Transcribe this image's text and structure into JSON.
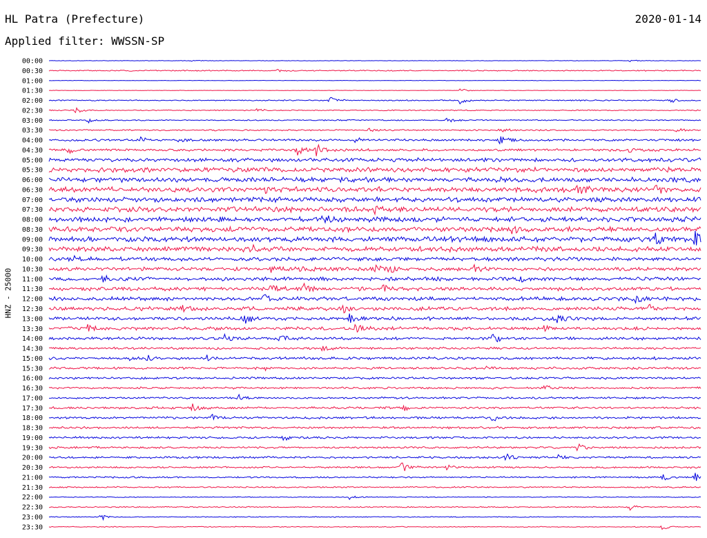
{
  "header": {
    "station": "HL Patra (Prefecture)",
    "date": "2020-01-14",
    "filter": "Applied filter: WWSSN-SP",
    "channel": "HNZ - 25000"
  },
  "colors": {
    "odd_trace": "#0000dd",
    "even_trace": "#ee1144",
    "text": "#000000",
    "background": "#ffffff"
  },
  "chart_data": {
    "type": "line",
    "description_source": "helicorder / seismogram drum plot, 48 half-hour rows",
    "ylabel": "HNZ - 25000",
    "rows": [
      {
        "label": "00:00",
        "color": "blue",
        "noise": 0.3
      },
      {
        "label": "00:30",
        "color": "red",
        "noise": 0.8
      },
      {
        "label": "01:00",
        "color": "blue",
        "noise": 0.3
      },
      {
        "label": "01:30",
        "color": "red",
        "noise": 0.3
      },
      {
        "label": "02:00",
        "color": "blue",
        "noise": 0.8
      },
      {
        "label": "02:30",
        "color": "red",
        "noise": 0.7
      },
      {
        "label": "03:00",
        "color": "blue",
        "noise": 0.8
      },
      {
        "label": "03:30",
        "color": "red",
        "noise": 1.0
      },
      {
        "label": "04:00",
        "color": "blue",
        "noise": 1.6
      },
      {
        "label": "04:30",
        "color": "red",
        "noise": 1.7
      },
      {
        "label": "05:00",
        "color": "blue",
        "noise": 2.6
      },
      {
        "label": "05:30",
        "color": "red",
        "noise": 3.2
      },
      {
        "label": "06:00",
        "color": "blue",
        "noise": 3.4
      },
      {
        "label": "06:30",
        "color": "red",
        "noise": 3.6
      },
      {
        "label": "07:00",
        "color": "blue",
        "noise": 3.4
      },
      {
        "label": "07:30",
        "color": "red",
        "noise": 3.6
      },
      {
        "label": "08:00",
        "color": "blue",
        "noise": 3.4
      },
      {
        "label": "08:30",
        "color": "red",
        "noise": 3.6
      },
      {
        "label": "09:00",
        "color": "blue",
        "noise": 3.6
      },
      {
        "label": "09:30",
        "color": "red",
        "noise": 3.4
      },
      {
        "label": "10:00",
        "color": "blue",
        "noise": 2.6
      },
      {
        "label": "10:30",
        "color": "red",
        "noise": 2.4
      },
      {
        "label": "11:00",
        "color": "blue",
        "noise": 2.6
      },
      {
        "label": "11:30",
        "color": "red",
        "noise": 2.6
      },
      {
        "label": "12:00",
        "color": "blue",
        "noise": 2.6
      },
      {
        "label": "12:30",
        "color": "red",
        "noise": 2.6
      },
      {
        "label": "13:00",
        "color": "blue",
        "noise": 2.4
      },
      {
        "label": "13:30",
        "color": "red",
        "noise": 2.2
      },
      {
        "label": "14:00",
        "color": "blue",
        "noise": 1.9
      },
      {
        "label": "14:30",
        "color": "red",
        "noise": 1.6
      },
      {
        "label": "15:00",
        "color": "blue",
        "noise": 1.9
      },
      {
        "label": "15:30",
        "color": "red",
        "noise": 1.6
      },
      {
        "label": "16:00",
        "color": "blue",
        "noise": 1.5
      },
      {
        "label": "16:30",
        "color": "red",
        "noise": 1.4
      },
      {
        "label": "17:00",
        "color": "blue",
        "noise": 1.3
      },
      {
        "label": "17:30",
        "color": "red",
        "noise": 1.5
      },
      {
        "label": "18:00",
        "color": "blue",
        "noise": 1.6
      },
      {
        "label": "18:30",
        "color": "red",
        "noise": 1.5
      },
      {
        "label": "19:00",
        "color": "blue",
        "noise": 1.4
      },
      {
        "label": "19:30",
        "color": "red",
        "noise": 1.4
      },
      {
        "label": "20:00",
        "color": "blue",
        "noise": 1.4
      },
      {
        "label": "20:30",
        "color": "red",
        "noise": 1.3
      },
      {
        "label": "21:00",
        "color": "blue",
        "noise": 1.1
      },
      {
        "label": "21:30",
        "color": "red",
        "noise": 1.0
      },
      {
        "label": "22:00",
        "color": "blue",
        "noise": 0.6
      },
      {
        "label": "22:30",
        "color": "red",
        "noise": 0.8
      },
      {
        "label": "23:00",
        "color": "blue",
        "noise": 0.6
      },
      {
        "label": "23:30",
        "color": "red",
        "noise": 0.6
      }
    ],
    "events": [
      {
        "row": "00:00",
        "x": 0.22,
        "amp": 1.6
      },
      {
        "row": "00:00",
        "x": 0.89,
        "amp": 1.4
      },
      {
        "row": "00:30",
        "x": 0.35,
        "amp": 1.5
      },
      {
        "row": "01:30",
        "x": 0.63,
        "amp": 3.0
      },
      {
        "row": "02:00",
        "x": 0.43,
        "amp": 5.0
      },
      {
        "row": "02:00",
        "x": 0.63,
        "amp": 6.0
      },
      {
        "row": "02:00",
        "x": 0.95,
        "amp": 5.0
      },
      {
        "row": "02:30",
        "x": 0.04,
        "amp": 5.0
      },
      {
        "row": "02:30",
        "x": 0.32,
        "amp": 3.5
      },
      {
        "row": "03:00",
        "x": 0.06,
        "amp": 4.5
      },
      {
        "row": "03:00",
        "x": 0.61,
        "amp": 5.0
      },
      {
        "row": "03:30",
        "x": 0.49,
        "amp": 3.0
      },
      {
        "row": "03:30",
        "x": 0.69,
        "amp": 5.0
      },
      {
        "row": "03:30",
        "x": 0.96,
        "amp": 3.5
      },
      {
        "row": "04:00",
        "x": 0.14,
        "amp": 5.0
      },
      {
        "row": "04:00",
        "x": 0.2,
        "amp": 7.0
      },
      {
        "row": "04:00",
        "x": 0.47,
        "amp": 4.0
      },
      {
        "row": "04:00",
        "x": 0.69,
        "amp": 7.0
      },
      {
        "row": "04:30",
        "x": 0.03,
        "amp": 5.0
      },
      {
        "row": "04:30",
        "x": 0.38,
        "amp": 8.0
      },
      {
        "row": "04:30",
        "x": 0.41,
        "amp": 9.0
      },
      {
        "row": "04:30",
        "x": 0.89,
        "amp": 4.0
      },
      {
        "row": "06:30",
        "x": 0.33,
        "amp": 6.0
      },
      {
        "row": "06:30",
        "x": 0.81,
        "amp": 9.0
      },
      {
        "row": "06:30",
        "x": 0.93,
        "amp": 6.0
      },
      {
        "row": "07:30",
        "x": 0.5,
        "amp": 6.0
      },
      {
        "row": "08:00",
        "x": 0.42,
        "amp": 6.0
      },
      {
        "row": "08:30",
        "x": 0.71,
        "amp": 6.0
      },
      {
        "row": "09:00",
        "x": 0.93,
        "amp": 7.0
      },
      {
        "row": "09:00",
        "x": 0.99,
        "amp": 9.0
      },
      {
        "row": "09:30",
        "x": 0.31,
        "amp": 6.0
      },
      {
        "row": "10:00",
        "x": 0.04,
        "amp": 5.0
      },
      {
        "row": "10:30",
        "x": 0.34,
        "amp": 7.0
      },
      {
        "row": "10:30",
        "x": 0.38,
        "amp": 9.0
      },
      {
        "row": "10:30",
        "x": 0.5,
        "amp": 6.0
      },
      {
        "row": "10:30",
        "x": 0.52,
        "amp": 7.0
      },
      {
        "row": "10:30",
        "x": 0.65,
        "amp": 6.0
      },
      {
        "row": "11:00",
        "x": 0.08,
        "amp": 6.0
      },
      {
        "row": "11:00",
        "x": 0.72,
        "amp": 6.0
      },
      {
        "row": "11:30",
        "x": 0.34,
        "amp": 6.0
      },
      {
        "row": "11:30",
        "x": 0.39,
        "amp": 7.0
      },
      {
        "row": "11:30",
        "x": 0.51,
        "amp": 6.0
      },
      {
        "row": "12:00",
        "x": 0.33,
        "amp": 6.0
      },
      {
        "row": "12:00",
        "x": 0.9,
        "amp": 7.0
      },
      {
        "row": "12:30",
        "x": 0.2,
        "amp": 7.0
      },
      {
        "row": "12:30",
        "x": 0.45,
        "amp": 7.0
      },
      {
        "row": "12:30",
        "x": 0.92,
        "amp": 6.0
      },
      {
        "row": "13:00",
        "x": 0.3,
        "amp": 7.0
      },
      {
        "row": "13:00",
        "x": 0.46,
        "amp": 8.0
      },
      {
        "row": "13:00",
        "x": 0.78,
        "amp": 9.0
      },
      {
        "row": "13:30",
        "x": 0.06,
        "amp": 6.0
      },
      {
        "row": "13:30",
        "x": 0.47,
        "amp": 7.0
      },
      {
        "row": "13:30",
        "x": 0.76,
        "amp": 6.0
      },
      {
        "row": "14:00",
        "x": 0.27,
        "amp": 6.0
      },
      {
        "row": "14:00",
        "x": 0.35,
        "amp": 9.0
      },
      {
        "row": "14:00",
        "x": 0.68,
        "amp": 7.0
      },
      {
        "row": "14:30",
        "x": 0.42,
        "amp": 5.0
      },
      {
        "row": "15:00",
        "x": 0.12,
        "amp": 5.0
      },
      {
        "row": "15:00",
        "x": 0.15,
        "amp": 4.0
      },
      {
        "row": "15:00",
        "x": 0.24,
        "amp": 5.0
      },
      {
        "row": "15:30",
        "x": 0.33,
        "amp": 4.0
      },
      {
        "row": "15:30",
        "x": 0.67,
        "amp": 4.0
      },
      {
        "row": "16:30",
        "x": 0.76,
        "amp": 4.0
      },
      {
        "row": "17:00",
        "x": 0.29,
        "amp": 5.0
      },
      {
        "row": "17:30",
        "x": 0.22,
        "amp": 6.0
      },
      {
        "row": "17:30",
        "x": 0.54,
        "amp": 5.0
      },
      {
        "row": "18:00",
        "x": 0.25,
        "amp": 4.0
      },
      {
        "row": "18:00",
        "x": 0.68,
        "amp": 4.0
      },
      {
        "row": "19:00",
        "x": 0.36,
        "amp": 5.0
      },
      {
        "row": "19:30",
        "x": 0.81,
        "amp": 5.0
      },
      {
        "row": "20:00",
        "x": 0.7,
        "amp": 5.0
      },
      {
        "row": "20:00",
        "x": 0.78,
        "amp": 4.0
      },
      {
        "row": "20:30",
        "x": 0.54,
        "amp": 8.0
      },
      {
        "row": "20:30",
        "x": 0.61,
        "amp": 4.0
      },
      {
        "row": "21:00",
        "x": 0.94,
        "amp": 5.0
      },
      {
        "row": "21:00",
        "x": 0.99,
        "amp": 6.0
      },
      {
        "row": "22:00",
        "x": 0.46,
        "amp": 3.0
      },
      {
        "row": "22:30",
        "x": 0.89,
        "amp": 5.0
      },
      {
        "row": "23:00",
        "x": 0.08,
        "amp": 5.0
      },
      {
        "row": "23:30",
        "x": 0.94,
        "amp": 4.0
      }
    ]
  }
}
